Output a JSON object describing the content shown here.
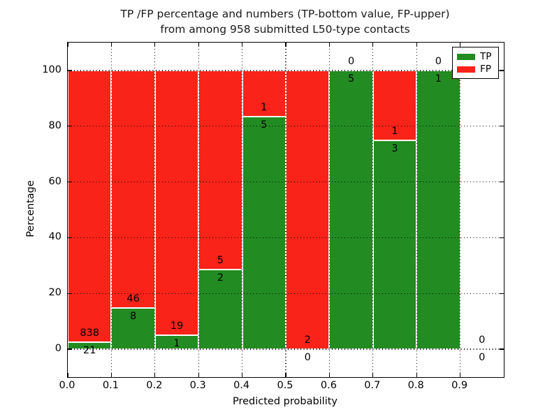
{
  "chart_data": {
    "type": "bar",
    "stacking": "percentage-stacked",
    "title_lines": [
      "TP /FP percentage and numbers (TP-bottom value, FP-upper)",
      "from among 958 submitted L50-type contacts"
    ],
    "xlabel": "Predicted probability",
    "ylabel": "Percentage",
    "xlim": [
      0.0,
      1.0
    ],
    "ylim": [
      -10,
      110
    ],
    "xticks": [
      "0.0",
      "0.1",
      "0.2",
      "0.3",
      "0.4",
      "0.5",
      "0.6",
      "0.7",
      "0.8",
      "0.9"
    ],
    "yticks": [
      "0",
      "20",
      "40",
      "60",
      "80",
      "100"
    ],
    "grid": true,
    "grid_style": "dotted",
    "legend_position": "upper right",
    "total_contacts": 958,
    "categories": [
      "0.0-0.1",
      "0.1-0.2",
      "0.2-0.3",
      "0.3-0.4",
      "0.4-0.5",
      "0.5-0.6",
      "0.6-0.7",
      "0.7-0.8",
      "0.8-0.9",
      "0.9-1.0"
    ],
    "series": [
      {
        "name": "TP",
        "color": "#228c22",
        "counts": [
          21,
          8,
          1,
          2,
          5,
          0,
          5,
          3,
          1,
          0
        ]
      },
      {
        "name": "FP",
        "color": "#f92319",
        "counts": [
          838,
          46,
          19,
          5,
          1,
          2,
          0,
          1,
          0,
          0
        ]
      }
    ],
    "tp_percentages": [
      2.4,
      14.8,
      5.0,
      28.6,
      83.3,
      0.0,
      100.0,
      75.0,
      100.0,
      null
    ],
    "bar_edge_color": "#ffffff",
    "text_color": "#000000"
  }
}
